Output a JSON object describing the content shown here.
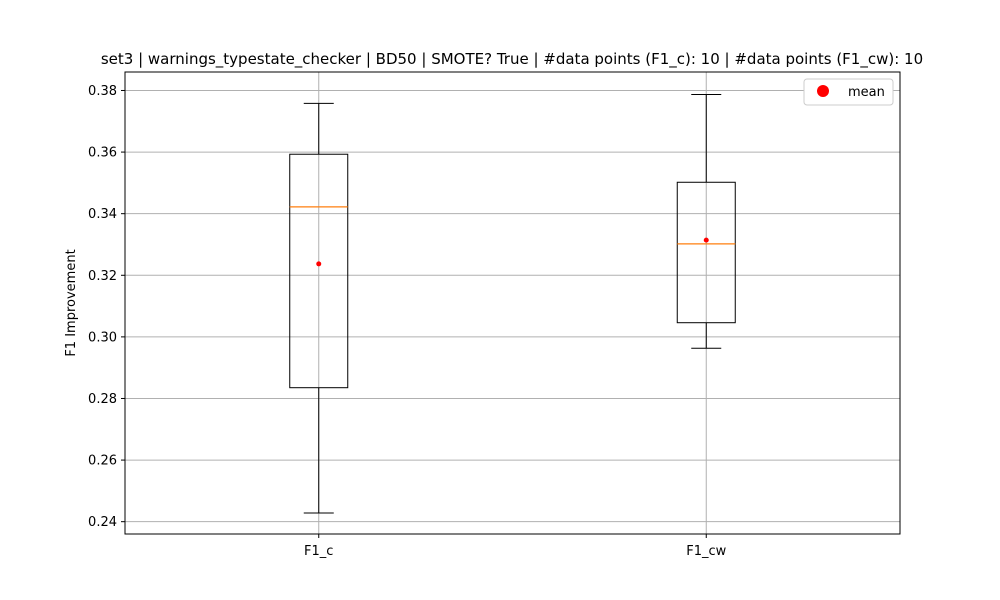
{
  "chart_data": {
    "type": "box",
    "title": "set3 | warnings_typestate_checker | BD50 | SMOTE? True | #data points (F1_c): 10 | #data points (F1_cw): 10",
    "xlabel": "",
    "ylabel": "F1 Improvement",
    "ylim": [
      0.236,
      0.386
    ],
    "yticks": [
      "0.24",
      "0.26",
      "0.28",
      "0.30",
      "0.32",
      "0.34",
      "0.36",
      "0.38"
    ],
    "grid": true,
    "legend": {
      "position": "top-right",
      "entries": [
        "mean"
      ]
    },
    "categories": [
      "F1_c",
      "F1_cw"
    ],
    "boxes": [
      {
        "name": "F1_c",
        "whisker_low": 0.2428,
        "q1": 0.2835,
        "median": 0.3422,
        "q3": 0.3593,
        "whisker_high": 0.3758,
        "mean": 0.3237
      },
      {
        "name": "F1_cw",
        "whisker_low": 0.2963,
        "q1": 0.3046,
        "median": 0.3302,
        "q3": 0.3502,
        "whisker_high": 0.3787,
        "mean": 0.3314
      }
    ],
    "colors": {
      "box": "#000000",
      "median": "#ff7f0e",
      "mean": "#ff0000",
      "grid": "#b0b0b0"
    }
  }
}
